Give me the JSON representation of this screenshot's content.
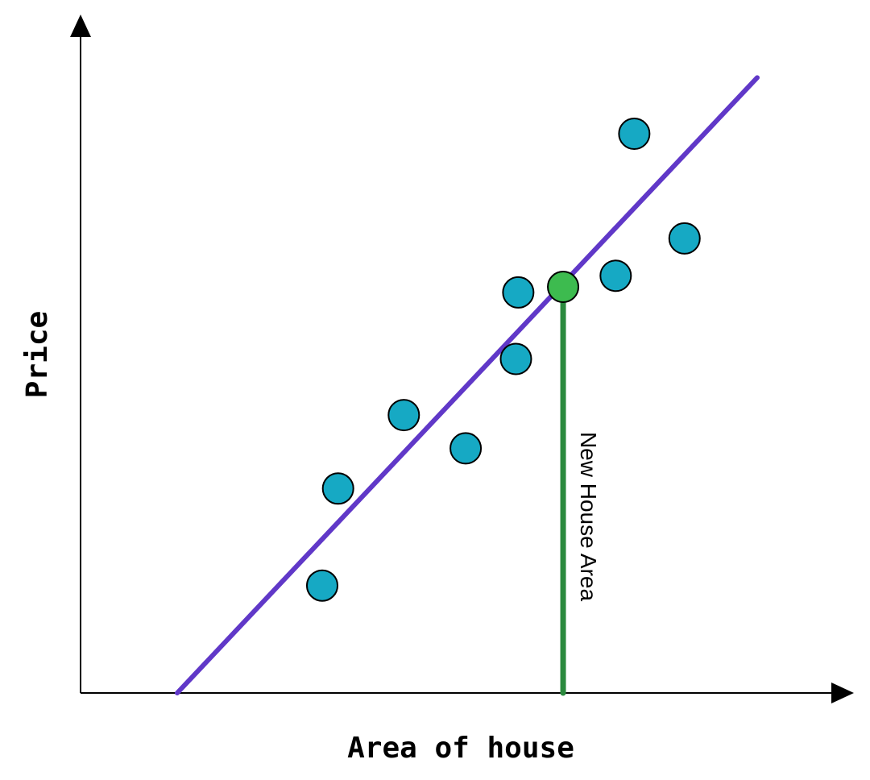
{
  "chart_data": {
    "type": "scatter",
    "title": "",
    "xlabel": "Area of house",
    "ylabel": "Price",
    "xlim": [
      0,
      100
    ],
    "ylim": [
      0,
      100
    ],
    "grid": false,
    "points": [
      {
        "x": 31.25,
        "y": 15.5
      },
      {
        "x": 33.3,
        "y": 29.5
      },
      {
        "x": 41.8,
        "y": 40.1
      },
      {
        "x": 49.8,
        "y": 35.3
      },
      {
        "x": 56.3,
        "y": 48.2
      },
      {
        "x": 56.6,
        "y": 57.8
      },
      {
        "x": 69.2,
        "y": 60.2
      },
      {
        "x": 71.6,
        "y": 80.7
      },
      {
        "x": 78.1,
        "y": 65.6
      }
    ],
    "regression_line": {
      "x1": 12.5,
      "y1": 0,
      "x2": 87.5,
      "y2": 88.8
    },
    "new_point": {
      "x": 62.4,
      "y": 58.6,
      "label": "New House Area"
    },
    "colors": {
      "points": "#16a9c4",
      "new_point": "#3dbb4f",
      "regression_line": "#6038c8",
      "projection_line": "#2b8a3e",
      "axis": "#000000"
    }
  }
}
